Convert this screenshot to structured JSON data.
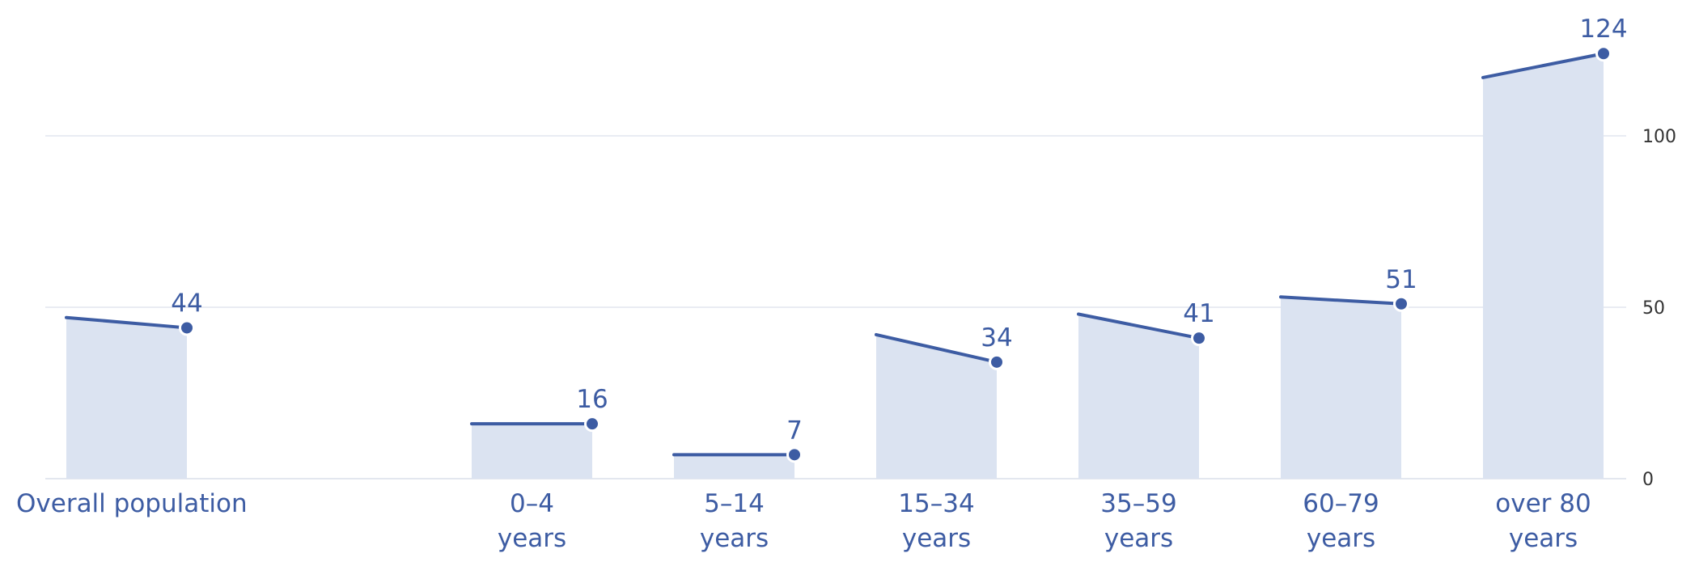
{
  "chart_data": {
    "type": "area",
    "title": "",
    "xlabel": "",
    "ylabel": "",
    "categories": [
      [
        "Overall population"
      ],
      [
        "0–4",
        "years"
      ],
      [
        "5–14",
        "years"
      ],
      [
        "15–34",
        "years"
      ],
      [
        "35–59",
        "years"
      ],
      [
        "60–79",
        "years"
      ],
      [
        "over 80",
        "years"
      ]
    ],
    "series": [
      {
        "start_values": [
          47,
          16,
          7,
          42,
          48,
          53,
          117
        ],
        "values": [
          44,
          16,
          7,
          34,
          41,
          51,
          124
        ]
      }
    ],
    "value_labels": [
      "44",
      "16",
      "7",
      "34",
      "41",
      "51",
      "124"
    ],
    "y_ticks": [
      0,
      50,
      100
    ],
    "ylim": [
      0,
      135
    ],
    "y_axis_position": "right",
    "grid": true,
    "legend": "none",
    "colors": {
      "line": "#3d5ca3",
      "fill": "#dbe3f1",
      "text": "#3d5ca3"
    }
  }
}
